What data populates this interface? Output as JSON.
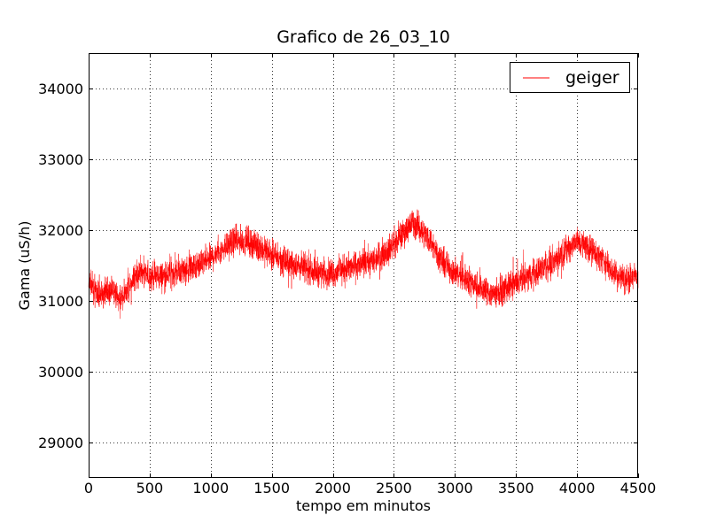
{
  "chart_data": {
    "type": "line",
    "title": "Grafico de 26_03_10",
    "xlabel": "tempo em minutos",
    "ylabel": "Gama (uS/h)",
    "xlim": [
      0,
      4500
    ],
    "ylim": [
      28500,
      34500
    ],
    "xticks": [
      0,
      500,
      1000,
      1500,
      2000,
      2500,
      3000,
      3500,
      4000,
      4500
    ],
    "yticks": [
      29000,
      30000,
      31000,
      32000,
      33000,
      34000
    ],
    "grid": true,
    "legend_position": "top-right",
    "series": [
      {
        "name": "geiger",
        "color": "#ff0000",
        "noise_amplitude": 170,
        "trend": [
          [
            0,
            31250
          ],
          [
            50,
            31150
          ],
          [
            100,
            31050
          ],
          [
            150,
            31100
          ],
          [
            200,
            31150
          ],
          [
            250,
            31000
          ],
          [
            300,
            31100
          ],
          [
            350,
            31250
          ],
          [
            400,
            31400
          ],
          [
            500,
            31350
          ],
          [
            600,
            31350
          ],
          [
            700,
            31400
          ],
          [
            800,
            31450
          ],
          [
            900,
            31500
          ],
          [
            1000,
            31600
          ],
          [
            1100,
            31750
          ],
          [
            1200,
            31850
          ],
          [
            1300,
            31850
          ],
          [
            1400,
            31750
          ],
          [
            1500,
            31650
          ],
          [
            1600,
            31550
          ],
          [
            1700,
            31500
          ],
          [
            1800,
            31450
          ],
          [
            1900,
            31400
          ],
          [
            2000,
            31400
          ],
          [
            2100,
            31450
          ],
          [
            2200,
            31500
          ],
          [
            2300,
            31550
          ],
          [
            2400,
            31650
          ],
          [
            2500,
            31800
          ],
          [
            2600,
            32000
          ],
          [
            2650,
            32100
          ],
          [
            2700,
            32050
          ],
          [
            2800,
            31850
          ],
          [
            2900,
            31550
          ],
          [
            3000,
            31400
          ],
          [
            3100,
            31300
          ],
          [
            3200,
            31200
          ],
          [
            3300,
            31100
          ],
          [
            3400,
            31150
          ],
          [
            3500,
            31250
          ],
          [
            3600,
            31350
          ],
          [
            3700,
            31450
          ],
          [
            3800,
            31550
          ],
          [
            3900,
            31700
          ],
          [
            4000,
            31850
          ],
          [
            4100,
            31750
          ],
          [
            4200,
            31600
          ],
          [
            4300,
            31400
          ],
          [
            4400,
            31300
          ],
          [
            4500,
            31350
          ]
        ]
      }
    ]
  }
}
